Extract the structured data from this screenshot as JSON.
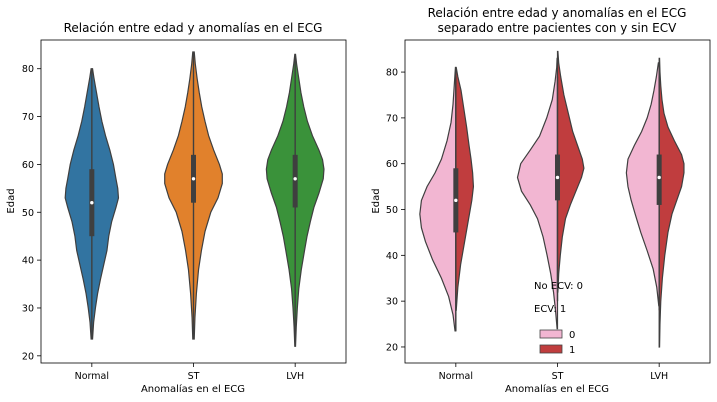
{
  "chart_data": [
    {
      "type": "violin",
      "title": "Relación entre edad y anomalías en el ECG",
      "xlabel": "Anomalías en el ECG",
      "ylabel": "Edad",
      "categories": [
        "Normal",
        "ST",
        "LVH"
      ],
      "ylim": [
        18.5,
        86
      ],
      "yticks": [
        20,
        30,
        40,
        50,
        60,
        70,
        80
      ],
      "split": false,
      "colors": [
        "#3274a1",
        "#e1812c",
        "#3a923a"
      ],
      "series": [
        {
          "category": "Normal",
          "range": [
            23.5,
            80
          ],
          "quartiles": [
            45,
            52,
            59
          ],
          "whisker": [
            29,
            77
          ],
          "density": [
            [
              23.5,
              0.02
            ],
            [
              27,
              0.05
            ],
            [
              30,
              0.1
            ],
            [
              33,
              0.16
            ],
            [
              36,
              0.24
            ],
            [
              39,
              0.33
            ],
            [
              42,
              0.42
            ],
            [
              45,
              0.47
            ],
            [
              48,
              0.55
            ],
            [
              51,
              0.67
            ],
            [
              53,
              0.74
            ],
            [
              55,
              0.72
            ],
            [
              57,
              0.67
            ],
            [
              60,
              0.6
            ],
            [
              63,
              0.5
            ],
            [
              66,
              0.38
            ],
            [
              69,
              0.28
            ],
            [
              72,
              0.2
            ],
            [
              75,
              0.13
            ],
            [
              78,
              0.06
            ],
            [
              80,
              0.02
            ]
          ]
        },
        {
          "category": "ST",
          "range": [
            23.5,
            83.5
          ],
          "quartiles": [
            52,
            57,
            62
          ],
          "whisker": [
            37,
            77
          ],
          "density": [
            [
              23.5,
              0.02
            ],
            [
              28,
              0.04
            ],
            [
              33,
              0.08
            ],
            [
              38,
              0.14
            ],
            [
              42,
              0.22
            ],
            [
              46,
              0.32
            ],
            [
              50,
              0.48
            ],
            [
              53,
              0.68
            ],
            [
              56,
              0.8
            ],
            [
              58,
              0.8
            ],
            [
              60,
              0.72
            ],
            [
              63,
              0.56
            ],
            [
              66,
              0.42
            ],
            [
              69,
              0.32
            ],
            [
              72,
              0.23
            ],
            [
              75,
              0.16
            ],
            [
              78,
              0.1
            ],
            [
              81,
              0.05
            ],
            [
              83.5,
              0.02
            ]
          ]
        },
        {
          "category": "LVH",
          "range": [
            22,
            83
          ],
          "quartiles": [
            51,
            57,
            62
          ],
          "whisker": [
            35,
            77
          ],
          "density": [
            [
              22,
              0.01
            ],
            [
              26,
              0.03
            ],
            [
              30,
              0.06
            ],
            [
              34,
              0.1
            ],
            [
              38,
              0.17
            ],
            [
              42,
              0.26
            ],
            [
              45,
              0.33
            ],
            [
              48,
              0.42
            ],
            [
              51,
              0.52
            ],
            [
              54,
              0.66
            ],
            [
              57,
              0.78
            ],
            [
              59,
              0.8
            ],
            [
              61,
              0.76
            ],
            [
              63,
              0.66
            ],
            [
              66,
              0.48
            ],
            [
              69,
              0.34
            ],
            [
              72,
              0.24
            ],
            [
              75,
              0.16
            ],
            [
              78,
              0.1
            ],
            [
              81,
              0.04
            ],
            [
              83,
              0.01
            ]
          ]
        }
      ]
    },
    {
      "type": "violin",
      "title": "Relación entre edad y anomalías en el ECG separado entre pacientes con y sin ECV",
      "title_lines": [
        "Relación entre edad y anomalías en el ECG",
        "separado entre pacientes con y sin ECV"
      ],
      "xlabel": "Anomalías en el ECG",
      "ylabel": "Edad",
      "categories": [
        "Normal",
        "ST",
        "LVH"
      ],
      "ylim": [
        16.5,
        87
      ],
      "yticks": [
        20,
        30,
        40,
        50,
        60,
        70,
        80
      ],
      "split": true,
      "hue_colors": {
        "0": "#f2b6d2",
        "1": "#c03d3e"
      },
      "legend": {
        "position": "lower-center",
        "annotations": [
          "No ECV: 0",
          "ECV: 1"
        ],
        "entries": [
          {
            "label": "0",
            "color": "#f2b6d2"
          },
          {
            "label": "1",
            "color": "#c03d3e"
          }
        ]
      },
      "series": [
        {
          "category": "Normal",
          "quartiles": [
            45,
            52,
            59
          ],
          "whisker": [
            30,
            77
          ],
          "left": {
            "hue": "0",
            "density": [
              [
                23.5,
                0.02
              ],
              [
                27,
                0.07
              ],
              [
                31,
                0.18
              ],
              [
                35,
                0.36
              ],
              [
                39,
                0.58
              ],
              [
                43,
                0.76
              ],
              [
                46,
                0.86
              ],
              [
                49,
                0.9
              ],
              [
                52,
                0.86
              ],
              [
                55,
                0.72
              ],
              [
                58,
                0.52
              ],
              [
                61,
                0.36
              ],
              [
                65,
                0.22
              ],
              [
                69,
                0.12
              ],
              [
                73,
                0.07
              ],
              [
                77,
                0.04
              ],
              [
                81,
                0.01
              ]
            ]
          },
          "right": {
            "hue": "1",
            "density": [
              [
                28,
                0.01
              ],
              [
                33,
                0.05
              ],
              [
                38,
                0.12
              ],
              [
                43,
                0.22
              ],
              [
                47,
                0.3
              ],
              [
                50,
                0.36
              ],
              [
                52,
                0.4
              ],
              [
                55,
                0.44
              ],
              [
                58,
                0.42
              ],
              [
                61,
                0.38
              ],
              [
                64,
                0.33
              ],
              [
                68,
                0.27
              ],
              [
                72,
                0.2
              ],
              [
                76,
                0.13
              ],
              [
                79,
                0.05
              ],
              [
                81,
                0.01
              ]
            ]
          }
        },
        {
          "category": "ST",
          "quartiles": [
            52,
            57,
            62
          ],
          "whisker": [
            37,
            77
          ],
          "left": {
            "hue": "0",
            "density": [
              [
                24,
                0.01
              ],
              [
                28,
                0.05
              ],
              [
                32,
                0.1
              ],
              [
                36,
                0.17
              ],
              [
                40,
                0.26
              ],
              [
                44,
                0.36
              ],
              [
                48,
                0.5
              ],
              [
                51,
                0.68
              ],
              [
                54,
                0.9
              ],
              [
                57,
                1.0
              ],
              [
                60,
                0.92
              ],
              [
                63,
                0.68
              ],
              [
                66,
                0.45
              ],
              [
                70,
                0.27
              ],
              [
                74,
                0.13
              ],
              [
                78,
                0.06
              ],
              [
                81,
                0.02
              ],
              [
                83,
                0.01
              ]
            ]
          },
          "right": {
            "hue": "1",
            "density": [
              [
                32,
                0.01
              ],
              [
                36,
                0.03
              ],
              [
                40,
                0.07
              ],
              [
                44,
                0.12
              ],
              [
                48,
                0.2
              ],
              [
                51,
                0.32
              ],
              [
                54,
                0.46
              ],
              [
                57,
                0.6
              ],
              [
                59,
                0.66
              ],
              [
                61,
                0.62
              ],
              [
                64,
                0.5
              ],
              [
                67,
                0.38
              ],
              [
                71,
                0.27
              ],
              [
                75,
                0.16
              ],
              [
                79,
                0.08
              ],
              [
                82,
                0.03
              ],
              [
                84.5,
                0.01
              ]
            ]
          }
        },
        {
          "category": "LVH",
          "quartiles": [
            51,
            57,
            62
          ],
          "whisker": [
            35,
            77
          ],
          "left": {
            "hue": "0",
            "density": [
              [
                29,
                0.01
              ],
              [
                33,
                0.06
              ],
              [
                37,
                0.15
              ],
              [
                41,
                0.3
              ],
              [
                45,
                0.46
              ],
              [
                49,
                0.6
              ],
              [
                52,
                0.7
              ],
              [
                55,
                0.78
              ],
              [
                58,
                0.82
              ],
              [
                61,
                0.78
              ],
              [
                64,
                0.62
              ],
              [
                67,
                0.44
              ],
              [
                70,
                0.3
              ],
              [
                73,
                0.2
              ],
              [
                76,
                0.13
              ],
              [
                79,
                0.07
              ],
              [
                82,
                0.02
              ]
            ]
          },
          "right": {
            "hue": "1",
            "density": [
              [
                20,
                0.01
              ],
              [
                25,
                0.02
              ],
              [
                30,
                0.04
              ],
              [
                35,
                0.08
              ],
              [
                40,
                0.14
              ],
              [
                45,
                0.22
              ],
              [
                49,
                0.32
              ],
              [
                52,
                0.44
              ],
              [
                55,
                0.56
              ],
              [
                58,
                0.62
              ],
              [
                60,
                0.62
              ],
              [
                62,
                0.56
              ],
              [
                65,
                0.38
              ],
              [
                68,
                0.22
              ],
              [
                71,
                0.12
              ],
              [
                74,
                0.07
              ],
              [
                77,
                0.04
              ],
              [
                80,
                0.02
              ],
              [
                83,
                0.01
              ]
            ]
          }
        }
      ]
    }
  ]
}
